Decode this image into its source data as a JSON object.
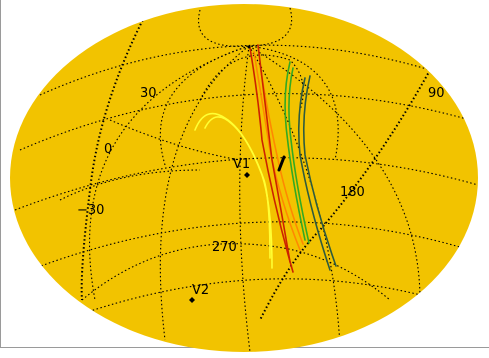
{
  "colors": {
    "background": "#ffffff",
    "sphere_fill": "#f2c300",
    "grid": "#000000",
    "frame": "#9a9a9a",
    "track_yellow": "#ffff33",
    "track_orange": "#ff8800",
    "track_red": "#cc2200",
    "track_green": "#33aa22",
    "track_dark_green": "#2e5b3e",
    "marker": "#000000"
  },
  "labels": {
    "lon_0": "0",
    "lon_90": "90",
    "lon_180": "180",
    "lon_270": "270",
    "lat_30": "30",
    "lat_m30": "−30",
    "voyager_1": "V1",
    "voyager_2": "V2"
  },
  "tracks": [
    {
      "name": "track-yellow",
      "color_key": "track_yellow"
    },
    {
      "name": "track-orange",
      "color_key": "track_orange"
    },
    {
      "name": "track-red",
      "color_key": "track_red"
    },
    {
      "name": "track-green",
      "color_key": "track_green"
    },
    {
      "name": "track-dark-green",
      "color_key": "track_dark_green"
    }
  ]
}
